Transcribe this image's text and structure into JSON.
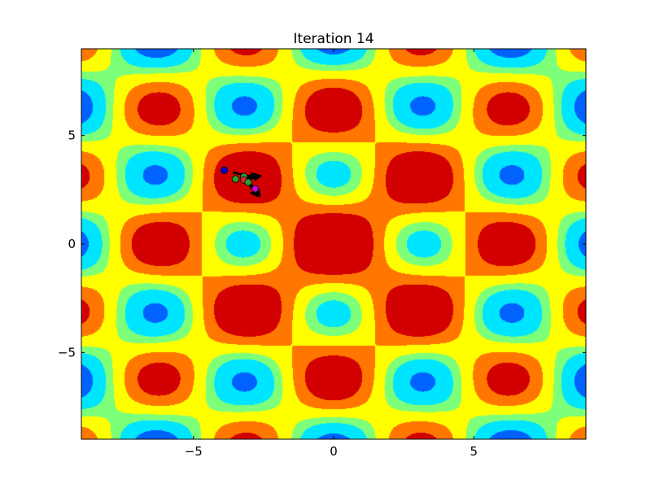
{
  "chart_data": {
    "type": "contour",
    "title": "Iteration 14",
    "xlabel": "",
    "ylabel": "",
    "xlim": [
      -9,
      9
    ],
    "ylim": [
      -9,
      9
    ],
    "xticks": [
      -5,
      0,
      5
    ],
    "yticks": [
      -5,
      0,
      5
    ],
    "xtick_labels": [
      "−5",
      "0",
      "5"
    ],
    "ytick_labels": [
      "−5",
      "0",
      "5"
    ],
    "colormap": [
      "#00007f",
      "#0000ff",
      "#0062ff",
      "#00e5ff",
      "#7dff7a",
      "#ffff00",
      "#ff7700",
      "#d20000"
    ],
    "level_thresholds": [
      -0.72,
      -0.52,
      -0.3,
      -0.07,
      0.08,
      0.3,
      0.52
    ],
    "surface": "f(x,y) = 0.55*cos(x)*cos(y) + 0.45*exp(-(x^2+y^2)/60)",
    "grid": false,
    "particles": [
      {
        "x": -3.9,
        "y": 3.4,
        "color": "#0000cc"
      },
      {
        "x": -3.5,
        "y": 3.0,
        "color": "#2ca02c"
      },
      {
        "x": -3.2,
        "y": 3.1,
        "color": "#2ca02c"
      },
      {
        "x": -3.2,
        "y": 2.95,
        "color": "#d62728"
      },
      {
        "x": -3.05,
        "y": 2.85,
        "color": "#2ca02c"
      },
      {
        "x": -2.8,
        "y": 2.55,
        "color": "#cc00cc"
      }
    ],
    "velocities": [
      {
        "x": -3.6,
        "y": 3.3,
        "dx": 0.9,
        "dy": -0.25
      },
      {
        "x": -3.3,
        "y": 3.0,
        "dx": 0.75,
        "dy": 0.15
      },
      {
        "x": -3.1,
        "y": 2.9,
        "dx": 0.4,
        "dy": -0.75
      },
      {
        "x": -2.95,
        "y": 2.75,
        "dx": 0.35,
        "dy": -0.6
      },
      {
        "x": -2.85,
        "y": 2.6,
        "dx": 0.0,
        "dy": -0.35
      }
    ]
  }
}
